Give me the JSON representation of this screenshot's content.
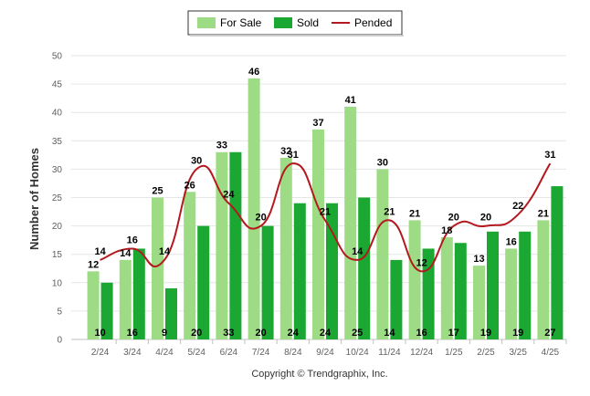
{
  "chart_data": {
    "type": "bar",
    "categories": [
      "2/24",
      "3/24",
      "4/24",
      "5/24",
      "6/24",
      "7/24",
      "8/24",
      "9/24",
      "10/24",
      "11/24",
      "12/24",
      "1/25",
      "2/25",
      "3/25",
      "4/25"
    ],
    "series": [
      {
        "name": "For Sale",
        "type": "bar",
        "color": "#9ddc84",
        "values": [
          12,
          14,
          25,
          26,
          33,
          46,
          32,
          37,
          41,
          30,
          21,
          18,
          13,
          16,
          21
        ]
      },
      {
        "name": "Sold",
        "type": "bar",
        "color": "#1aa832",
        "values": [
          10,
          16,
          9,
          20,
          33,
          20,
          24,
          24,
          25,
          14,
          16,
          17,
          19,
          19,
          27
        ]
      },
      {
        "name": "Pended",
        "type": "line",
        "color": "#b3191e",
        "values": [
          14,
          16,
          14,
          30,
          24,
          20,
          31,
          21,
          14,
          21,
          12,
          20,
          20,
          22,
          31
        ]
      }
    ],
    "ylabel": "Number of Homes",
    "ylim": [
      0,
      50
    ],
    "yticks": [
      0,
      5,
      10,
      15,
      20,
      25,
      30,
      35,
      40,
      45,
      50
    ],
    "legend_position": "top-center",
    "grid": true
  },
  "footer": {
    "copyright": "Copyright © Trendgraphix, Inc."
  }
}
